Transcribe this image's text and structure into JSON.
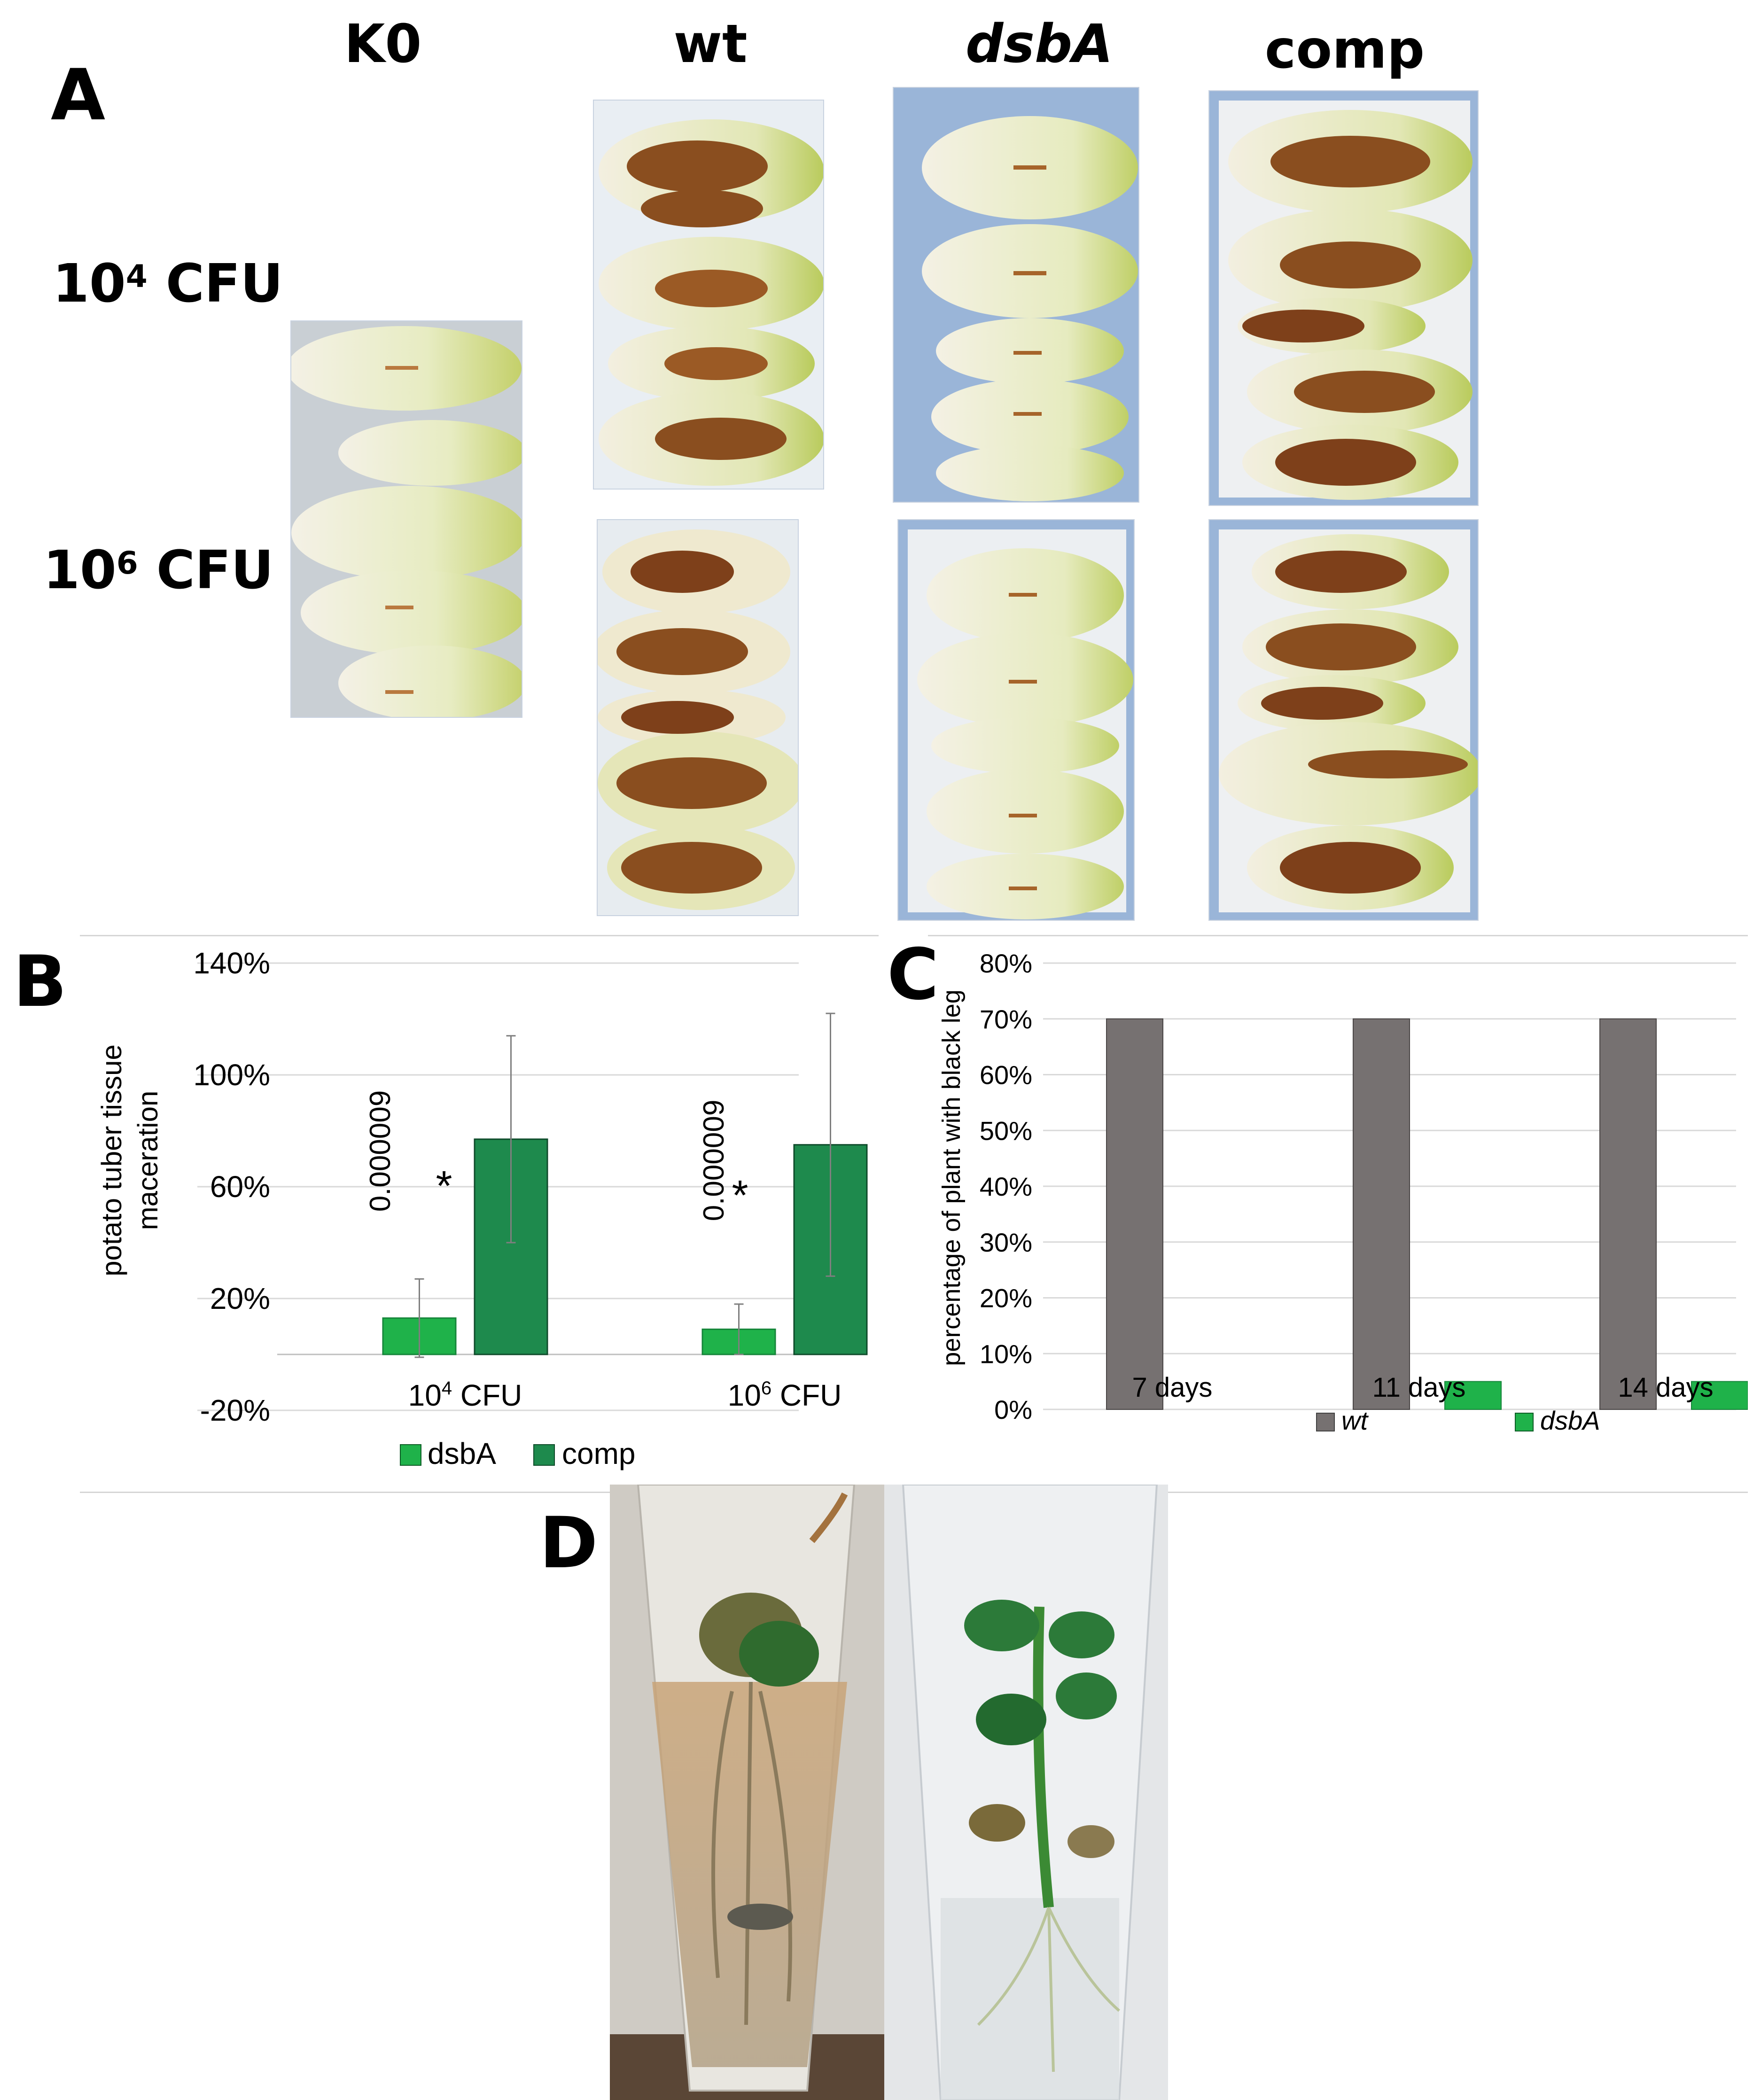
{
  "panel_a": {
    "letter": "A",
    "columns": [
      "K0",
      "wt",
      "dsbA",
      "comp"
    ],
    "rows": [
      {
        "base": "10",
        "exp": "4",
        "unit": "CFU"
      },
      {
        "base": "10",
        "exp": "6",
        "unit": "CFU"
      }
    ]
  },
  "panel_b": {
    "letter": "B"
  },
  "panel_c": {
    "letter": "C"
  },
  "panel_d": {
    "letter": "D"
  },
  "colors": {
    "dsbA": "#1fb24a",
    "comp": "#1e8a4d",
    "wt": "#767171",
    "axis": "#d9d9d9"
  },
  "chart_data": [
    {
      "id": "B",
      "type": "bar",
      "ylabel": [
        "potato tuber tissue",
        "maceration"
      ],
      "ylim": [
        -20,
        140
      ],
      "yticks": [
        "-20%",
        "20%",
        "60%",
        "100%",
        "140%"
      ],
      "ytick_values": [
        -20,
        20,
        60,
        100,
        140
      ],
      "categories": [
        {
          "base": "10",
          "exp": "4",
          "unit": "CFU"
        },
        {
          "base": "10",
          "exp": "6",
          "unit": "CFU"
        }
      ],
      "series": [
        {
          "name": "dsbA",
          "values": [
            13,
            9
          ],
          "errors": [
            14,
            9
          ]
        },
        {
          "name": "comp",
          "values": [
            77,
            75
          ],
          "errors": [
            37,
            47
          ]
        }
      ],
      "annotations": [
        {
          "category": 0,
          "pvalue": "0.000009",
          "marker": "*"
        },
        {
          "category": 1,
          "pvalue": "0.000009",
          "marker": "*"
        }
      ],
      "legend": "bottom",
      "grid": true
    },
    {
      "id": "C",
      "type": "bar",
      "ylabel": "percentage of plant with black leg",
      "ylim": [
        0,
        80
      ],
      "yticks": [
        "0%",
        "10%",
        "20%",
        "30%",
        "40%",
        "50%",
        "60%",
        "70%",
        "80%"
      ],
      "ytick_values": [
        0,
        10,
        20,
        30,
        40,
        50,
        60,
        70,
        80
      ],
      "categories": [
        "7 days",
        "11 days",
        "14 days"
      ],
      "series": [
        {
          "name": "wt",
          "values": [
            70,
            70,
            70
          ]
        },
        {
          "name": "dsbA",
          "values": [
            0,
            5,
            5
          ]
        }
      ],
      "legend": "bottom",
      "grid": true
    }
  ]
}
